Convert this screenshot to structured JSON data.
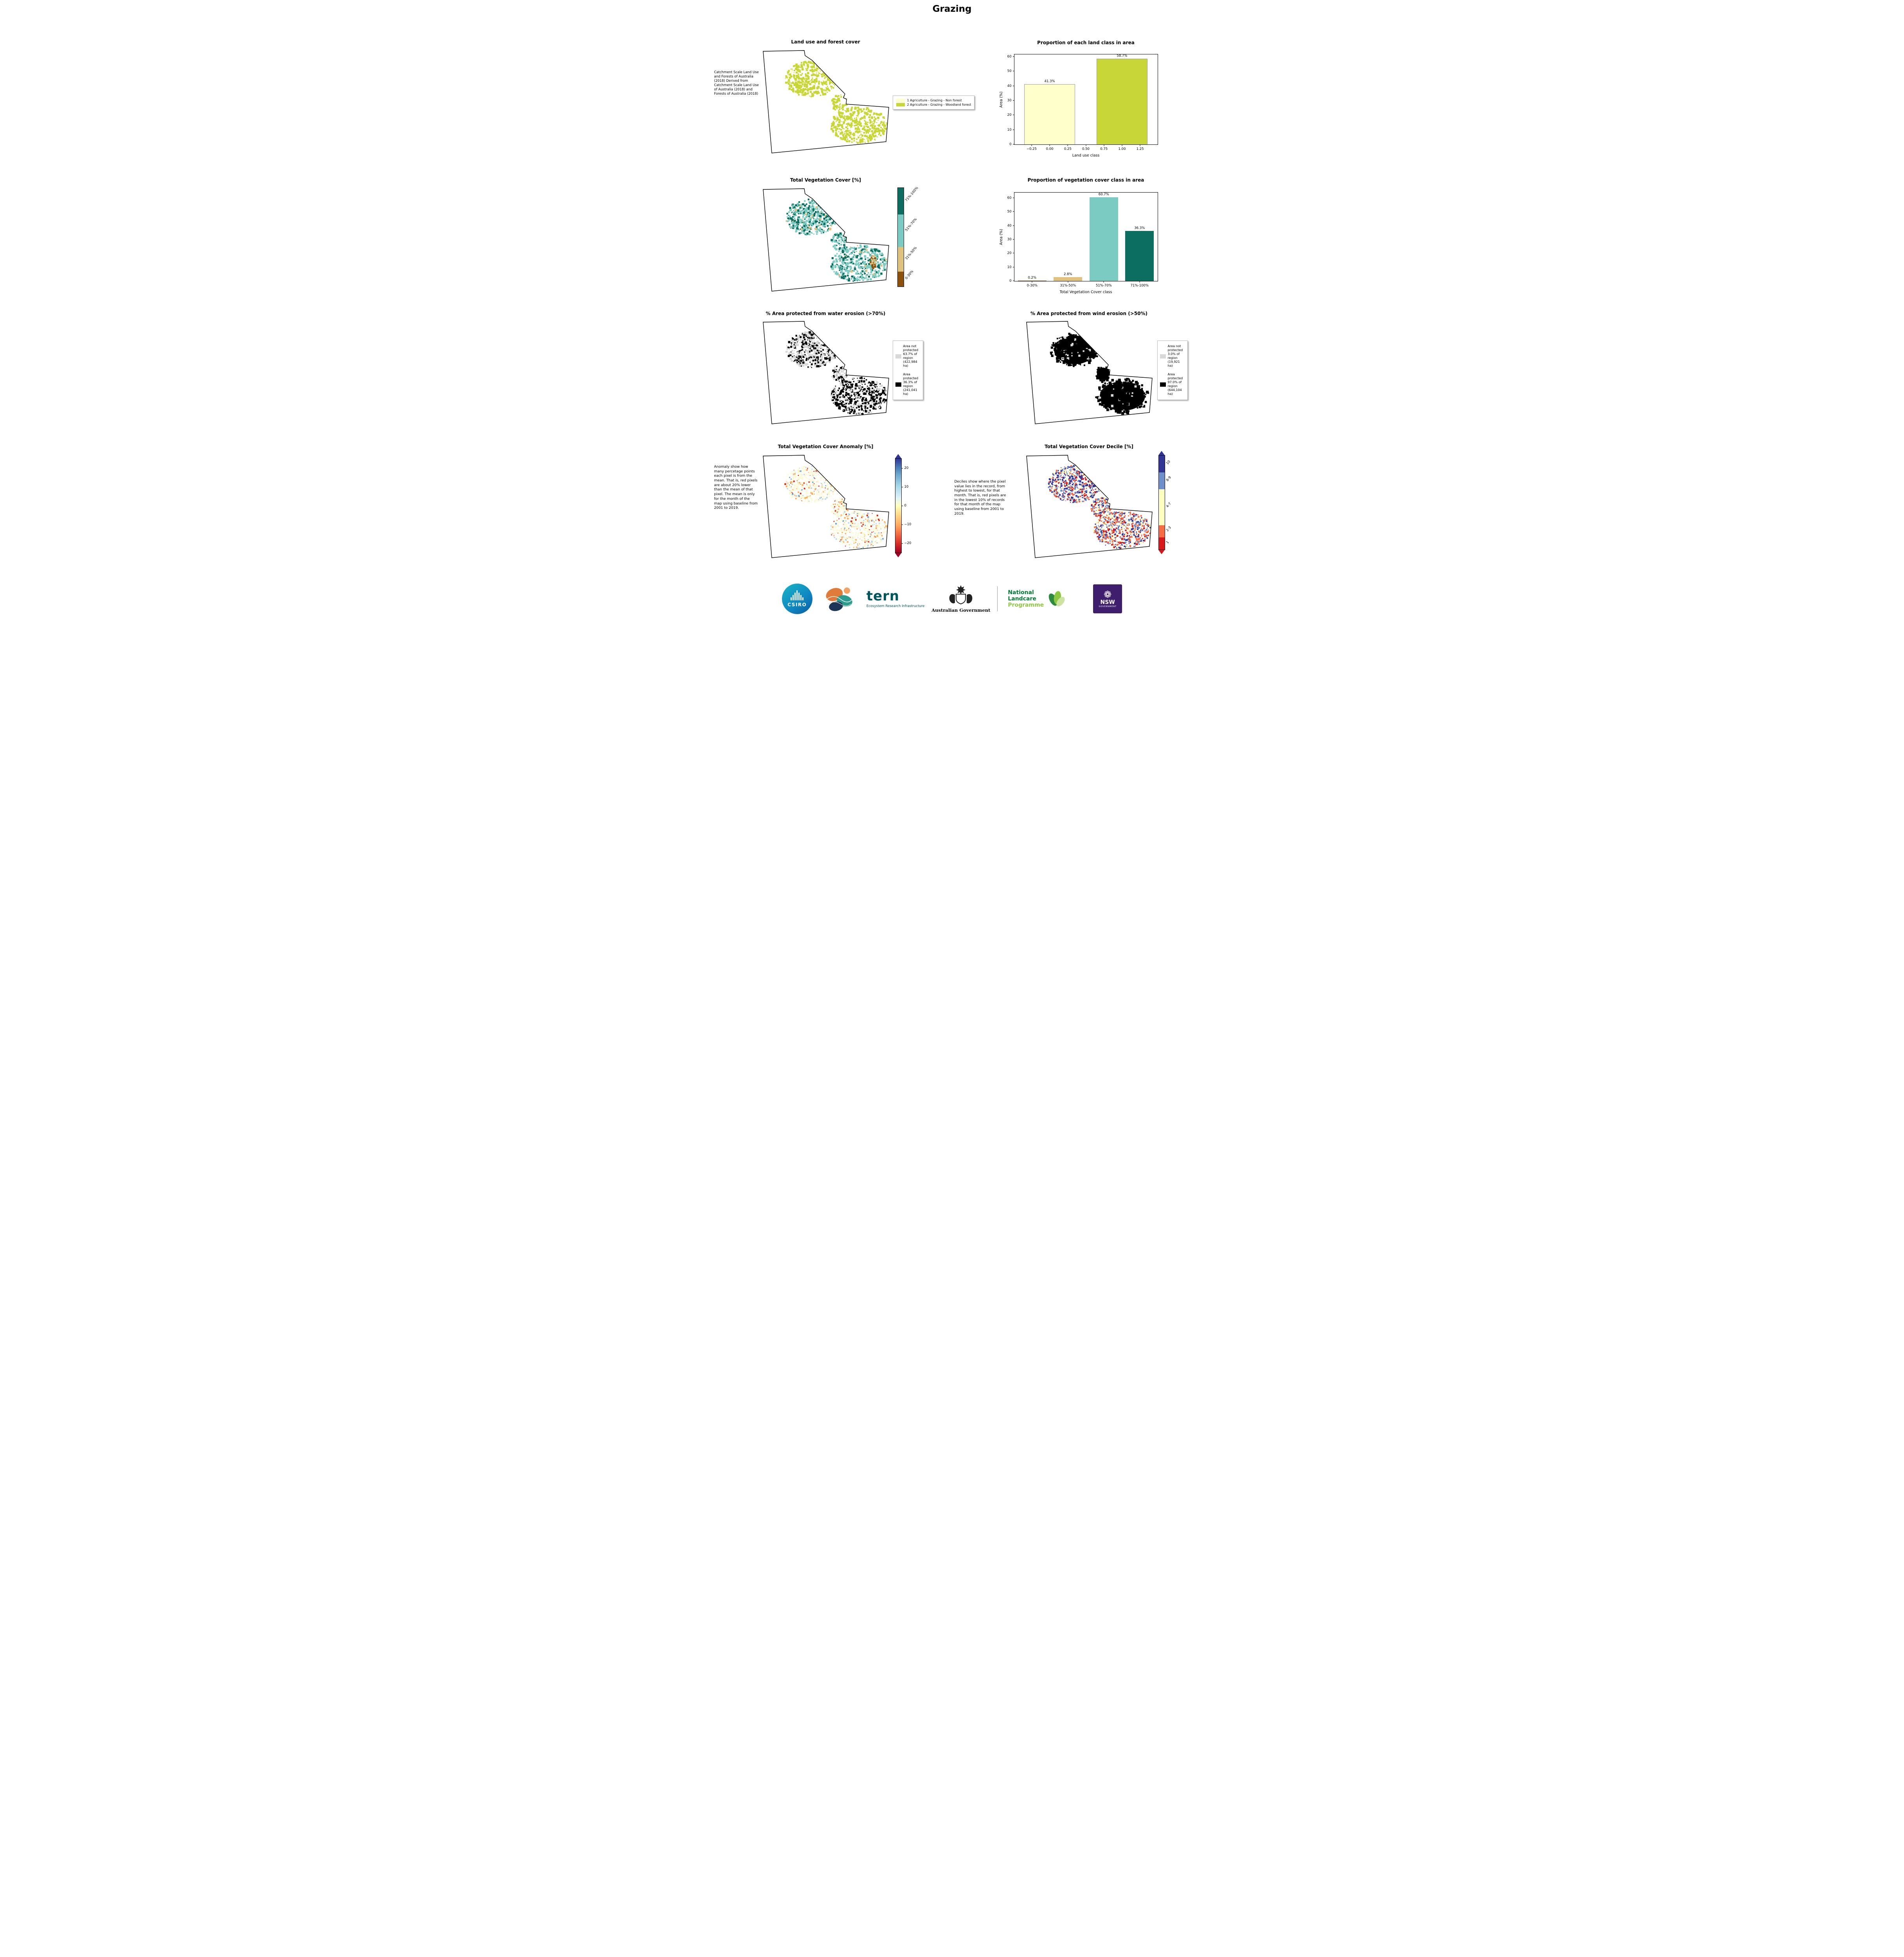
{
  "title": "Grazing",
  "colors": {
    "land_nonforest": "#ffffcc",
    "land_woodland": "#c9d637",
    "veg_0_30": "#8c510a",
    "veg_31_50": "#dfc27d",
    "veg_51_70": "#7ccbc2",
    "veg_71_100": "#0b6e61",
    "area_not_protected": "#d9d9d9",
    "area_protected": "#000000",
    "anomaly_high": "#313695",
    "anomaly_mid": "#ffffbf",
    "anomaly_low": "#a50026",
    "anom_speck_bg": "#fbfad2",
    "anom_speck_orange": "#fdae61",
    "anom_speck_red": "#d7301f",
    "anom_speck_lightblue": "#b8d9ea",
    "anom_speck_blue": "#74add1",
    "decile_10": "#313695",
    "decile_8_9": "#6e8fc9",
    "decile_4_7": "#ffffbf",
    "decile_2_3": "#f46d43",
    "decile_1": "#d7191c",
    "csiro_blue": "#0f86c0",
    "tern_teal": "#00565e",
    "landcare_dark_green": "#007a33",
    "landcare_light_green": "#8dc63f",
    "nsw_purple": "#3f1f6d"
  },
  "panels": {
    "land_use": {
      "title": "Land use and forest cover",
      "side_text": "Catchment Scale Land Use and Forests of Australia (2018) Derived from Catchment Scale Land Use of Australia (2018) and Forests of Australia (2018)",
      "legend": [
        {
          "label": "1 Agriculture - Grazing - Non forest",
          "color_key": "land_nonforest"
        },
        {
          "label": "2 Agriculture - Grazing - Woodland forest",
          "color_key": "land_woodland"
        }
      ]
    },
    "veg_cover_map": {
      "title": "Total Vegetation Cover [%]",
      "colorbar_labels": [
        "71%-100%",
        "51%-70%",
        "31%-50%",
        "0-30%"
      ]
    },
    "water_erosion": {
      "title": "% Area protected from water erosion (>70%)",
      "legend": [
        {
          "label": "Area not protected 63.7% of region (422,984 ha)",
          "color_key": "area_not_protected"
        },
        {
          "label": "Area protected 36.3% of region (241,041 ha)",
          "color_key": "area_protected"
        }
      ]
    },
    "wind_erosion": {
      "title": "% Area protected from wind erosion (>50%)",
      "legend": [
        {
          "label": "Area not protected 3.0% of region (19,921 ha)",
          "color_key": "area_not_protected"
        },
        {
          "label": "Area protected 97.0% of region (644,104 ha)",
          "color_key": "area_protected"
        }
      ]
    },
    "anomaly": {
      "title": "Total Vegetation Cover Anomaly [%]",
      "side_text": "Anomaly show how many percetage points each pixel is from the mean. That is, red pixels are about 20% lower than the mean of that pixel. The mean is only for the month of the map using baseline from 2001 to 2019.",
      "colorbar_ticks": [
        "20",
        "10",
        "0",
        "−10",
        "−20"
      ]
    },
    "decile": {
      "title": "Total Vegetation Cover Decile [%]",
      "side_text": "Deciles show where the pixel value lies in the record, from highest to lowest, for that month. That is, red pixels are in the lowest 10% of records for that month of the map using baseline from 2001 to 2019.",
      "colorbar_labels": [
        "10",
        "8-9",
        "4-7",
        "2-3",
        "1"
      ]
    }
  },
  "chart_data": [
    {
      "id": "land_class",
      "type": "bar",
      "title": "Proportion of each land class in area",
      "xlabel": "Land use class",
      "ylabel": "Area (%)",
      "ylim": [
        0,
        61.6
      ],
      "yticks": [
        0,
        10,
        20,
        30,
        40,
        50,
        60
      ],
      "xlim": [
        -0.49,
        1.49
      ],
      "xticks": [
        -0.25,
        0,
        0.25,
        0.5,
        0.75,
        1,
        1.25
      ],
      "xtick_labels": [
        "−0.25",
        "0.00",
        "0.25",
        "0.50",
        "0.75",
        "1.00",
        "1.25"
      ],
      "bar_width": 0.7,
      "edge_color": "#999999",
      "bars": [
        {
          "x": 0,
          "value": 41.3,
          "label": "41.3%",
          "color_key": "land_nonforest"
        },
        {
          "x": 1,
          "value": 58.7,
          "label": "58.7%",
          "color_key": "land_woodland"
        }
      ]
    },
    {
      "id": "veg_class",
      "type": "bar",
      "title": "Proportion of vegetation cover class in area",
      "xlabel": "Total Vegetation Cover class",
      "ylabel": "Area (%)",
      "ylim": [
        0,
        64
      ],
      "yticks": [
        0,
        10,
        20,
        30,
        40,
        50,
        60
      ],
      "xlim": [
        -0.5,
        3.5
      ],
      "xticks": [
        0,
        1,
        2,
        3
      ],
      "xtick_labels": [
        "0-30%",
        "31%-50%",
        "51%-70%",
        "71%-100%"
      ],
      "bar_width": 0.8,
      "bars": [
        {
          "x": 0,
          "value": 0.2,
          "label": "0.2%",
          "color_key": "veg_0_30"
        },
        {
          "x": 1,
          "value": 2.8,
          "label": "2.8%",
          "color_key": "veg_31_50"
        },
        {
          "x": 2,
          "value": 60.7,
          "label": "60.7%",
          "color_key": "veg_51_70"
        },
        {
          "x": 3,
          "value": 36.3,
          "label": "36.3%",
          "color_key": "veg_71_100"
        }
      ]
    }
  ],
  "footer": {
    "csiro": "CSIRO",
    "tern": "tern",
    "tern_sub": "Ecosystem Research Infrastructure",
    "aus_gov": "Australian Government",
    "landcare_1": "National",
    "landcare_2": "Landcare",
    "landcare_3": "Programme",
    "nsw": "NSW",
    "nsw_sub": "GOVERNMENT"
  },
  "icons": {
    "waratah": "❁"
  }
}
